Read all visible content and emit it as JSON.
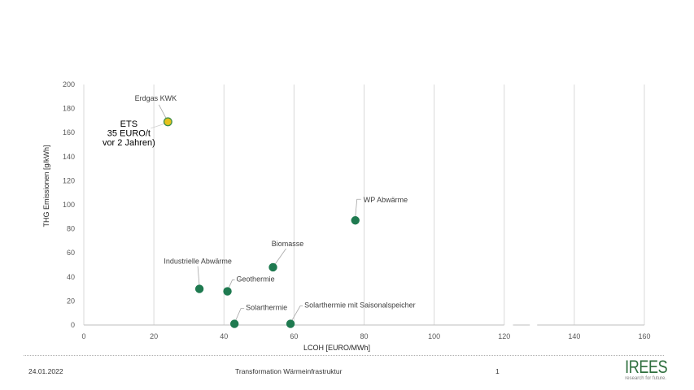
{
  "footer": {
    "date": "24.01.2022",
    "title": "Transformation Wärmeinfrastruktur",
    "page_number": "1",
    "logo_text": "IREES",
    "logo_tagline": "research for future."
  },
  "colors": {
    "marker_green": "#1f7a50",
    "marker_yellow": "#e5c21c",
    "marker_yellow_border": "#3f8f4a",
    "logo_green": "#2f6f3e"
  },
  "chart_data": {
    "type": "scatter",
    "title": "",
    "xlabel": "LCOH [EURO/MWh]",
    "ylabel": "THG Emissionen [g/kWh]",
    "xlim": [
      0,
      160
    ],
    "ylim": [
      0,
      200
    ],
    "x_ticks": [
      "0",
      "20",
      "40",
      "60",
      "80",
      "100",
      "120",
      "140",
      "160"
    ],
    "y_ticks": [
      "0",
      "20",
      "40",
      "60",
      "80",
      "100",
      "120",
      "140",
      "160",
      "180",
      "200"
    ],
    "grid": "vertical",
    "legend": "none",
    "x_axis_break_gaps": [
      [
        120,
        122.5
      ],
      [
        127.3,
        129.4
      ]
    ],
    "points": [
      {
        "label": "Erdgas KWK",
        "x": 24,
        "y": 169,
        "color": "yellow"
      },
      {
        "label": "WP Abwärme",
        "x": 77.5,
        "y": 87,
        "color": "green"
      },
      {
        "label": "Biomasse",
        "x": 54,
        "y": 48,
        "color": "green"
      },
      {
        "label": "Industrielle Abwärme",
        "x": 33,
        "y": 30,
        "color": "green"
      },
      {
        "label": "Geothermie",
        "x": 41,
        "y": 28,
        "color": "green"
      },
      {
        "label": "Solarthermie",
        "x": 43,
        "y": 1,
        "color": "green"
      },
      {
        "label": "Solarthermie mit Saisonalspeicher",
        "x": 59,
        "y": 1,
        "color": "green"
      }
    ],
    "annotations": [
      {
        "lines": [
          "ETS",
          "35 EURO/t",
          "vor 2 Jahren)"
        ],
        "points_to": "Erdgas KWK"
      }
    ]
  }
}
